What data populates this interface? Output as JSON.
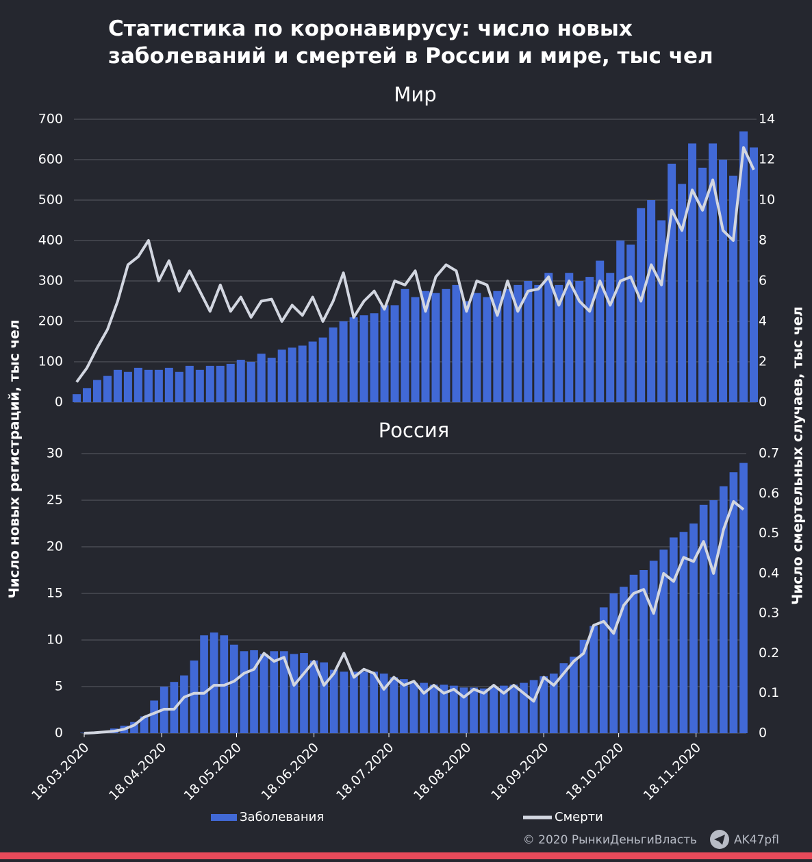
{
  "title": "Статистика по коронавирусу: число новых заболеваний и смертей в России и мире, тыс чел",
  "y_label": "Число новых регистраций, тыс чел",
  "y2_label": "Число смертельных случаев, тыс чел",
  "credit": "© 2020 РынкиДеньгиВласть",
  "channel": "AK47pfl",
  "chart_data": [
    {
      "type": "bar_line",
      "title": "Мир",
      "x": [
        "18.03.2020",
        "22.03.2020",
        "26.03.2020",
        "30.03.2020",
        "03.04.2020",
        "07.04.2020",
        "11.04.2020",
        "15.04.2020",
        "19.04.2020",
        "23.04.2020",
        "27.04.2020",
        "01.05.2020",
        "05.05.2020",
        "09.05.2020",
        "13.05.2020",
        "17.05.2020",
        "21.05.2020",
        "25.05.2020",
        "29.05.2020",
        "02.06.2020",
        "06.06.2020",
        "10.06.2020",
        "14.06.2020",
        "18.06.2020",
        "22.06.2020",
        "26.06.2020",
        "30.06.2020",
        "04.07.2020",
        "08.07.2020",
        "12.07.2020",
        "16.07.2020",
        "20.07.2020",
        "24.07.2020",
        "28.07.2020",
        "01.08.2020",
        "05.08.2020",
        "09.08.2020",
        "13.08.2020",
        "17.08.2020",
        "21.08.2020",
        "25.08.2020",
        "29.08.2020",
        "02.09.2020",
        "06.09.2020",
        "10.09.2020",
        "14.09.2020",
        "18.09.2020",
        "22.09.2020",
        "26.09.2020",
        "30.09.2020",
        "04.10.2020",
        "08.10.2020",
        "12.10.2020",
        "16.10.2020",
        "20.10.2020",
        "24.10.2020",
        "28.10.2020",
        "01.11.2020",
        "05.11.2020",
        "09.11.2020",
        "13.11.2020",
        "17.11.2020",
        "21.11.2020",
        "25.11.2020",
        "29.11.2020",
        "03.12.2020",
        "07.12.2020"
      ],
      "xlim": [
        "18.03.2020",
        "07.12.2020"
      ],
      "ylim": [
        0,
        700
      ],
      "yticks": [
        0,
        100,
        200,
        300,
        400,
        500,
        600,
        700
      ],
      "y2lim": [
        0,
        14
      ],
      "y2ticks": [
        0,
        2,
        4,
        6,
        8,
        10,
        12,
        14
      ],
      "grid": true,
      "series": [
        {
          "name": "Заболевания",
          "color": "#4169d6",
          "values": [
            20,
            35,
            55,
            65,
            80,
            75,
            85,
            80,
            80,
            85,
            75,
            90,
            80,
            90,
            90,
            95,
            105,
            100,
            120,
            110,
            130,
            135,
            140,
            150,
            160,
            185,
            200,
            210,
            215,
            220,
            240,
            240,
            280,
            260,
            275,
            270,
            280,
            290,
            250,
            270,
            260,
            275,
            280,
            290,
            300,
            290,
            320,
            290,
            320,
            300,
            310,
            350,
            320,
            400,
            390,
            480,
            500,
            450,
            590,
            540,
            640,
            580,
            640,
            600,
            560,
            670,
            630
          ]
        },
        {
          "name": "Смерти",
          "color": "#d2d6e0",
          "axis": "y2",
          "values": [
            1.0,
            1.7,
            2.7,
            3.6,
            5.0,
            6.8,
            7.2,
            8.0,
            6.0,
            7.0,
            5.5,
            6.5,
            5.5,
            4.5,
            5.8,
            4.5,
            5.2,
            4.2,
            5.0,
            5.1,
            4.0,
            4.8,
            4.3,
            5.2,
            4.0,
            5.0,
            6.4,
            4.2,
            5.0,
            5.5,
            4.6,
            6.0,
            5.8,
            6.5,
            4.5,
            6.2,
            6.8,
            6.5,
            4.5,
            6.0,
            5.8,
            4.3,
            6.0,
            4.5,
            5.5,
            5.6,
            6.2,
            4.8,
            6.0,
            5.0,
            4.5,
            6.0,
            4.8,
            6.0,
            6.2,
            5.0,
            6.8,
            5.8,
            9.5,
            8.5,
            10.5,
            9.5,
            11.0,
            8.5,
            8.0,
            12.6,
            11.5
          ]
        }
      ]
    },
    {
      "type": "bar_line",
      "title": "Россия",
      "x": [
        "18.03.2020",
        "22.03.2020",
        "26.03.2020",
        "30.03.2020",
        "03.04.2020",
        "07.04.2020",
        "11.04.2020",
        "15.04.2020",
        "19.04.2020",
        "23.04.2020",
        "27.04.2020",
        "01.05.2020",
        "05.05.2020",
        "09.05.2020",
        "13.05.2020",
        "17.05.2020",
        "21.05.2020",
        "25.05.2020",
        "29.05.2020",
        "02.06.2020",
        "06.06.2020",
        "10.06.2020",
        "14.06.2020",
        "18.06.2020",
        "22.06.2020",
        "26.06.2020",
        "30.06.2020",
        "04.07.2020",
        "08.07.2020",
        "12.07.2020",
        "16.07.2020",
        "20.07.2020",
        "24.07.2020",
        "28.07.2020",
        "01.08.2020",
        "05.08.2020",
        "09.08.2020",
        "13.08.2020",
        "17.08.2020",
        "21.08.2020",
        "25.08.2020",
        "29.08.2020",
        "02.09.2020",
        "06.09.2020",
        "10.09.2020",
        "14.09.2020",
        "18.09.2020",
        "22.09.2020",
        "26.09.2020",
        "30.09.2020",
        "04.10.2020",
        "08.10.2020",
        "12.10.2020",
        "16.10.2020",
        "20.10.2020",
        "24.10.2020",
        "28.10.2020",
        "01.11.2020",
        "05.11.2020",
        "09.11.2020",
        "13.11.2020",
        "17.11.2020",
        "21.11.2020",
        "25.11.2020",
        "29.11.2020",
        "03.12.2020",
        "07.12.2020"
      ],
      "xlim": [
        "18.03.2020",
        "07.12.2020"
      ],
      "xticks": [
        "18.03.2020",
        "18.04.2020",
        "18.05.2020",
        "18.06.2020",
        "18.07.2020",
        "18.08.2020",
        "18.09.2020",
        "18.10.2020",
        "18.11.2020"
      ],
      "ylim": [
        0,
        30
      ],
      "yticks": [
        0,
        5,
        10,
        15,
        20,
        25,
        30
      ],
      "y2lim": [
        0,
        0.7
      ],
      "y2ticks": [
        0,
        0.1,
        0.2,
        0.3,
        0.4,
        0.5,
        0.6,
        0.7
      ],
      "grid": true,
      "series": [
        {
          "name": "Заболевания",
          "color": "#4169d6",
          "values": [
            0.05,
            0.1,
            0.2,
            0.5,
            0.8,
            1.2,
            1.8,
            3.5,
            5.0,
            5.5,
            6.2,
            7.8,
            10.5,
            10.8,
            10.5,
            9.5,
            8.8,
            8.9,
            8.5,
            8.8,
            8.8,
            8.5,
            8.6,
            7.8,
            7.6,
            6.8,
            6.6,
            6.6,
            6.6,
            6.6,
            6.4,
            6.0,
            5.8,
            5.4,
            5.4,
            5.2,
            5.2,
            5.1,
            4.9,
            4.9,
            4.8,
            5.0,
            5.1,
            5.2,
            5.4,
            5.7,
            6.1,
            6.4,
            7.5,
            8.2,
            10.0,
            11.5,
            13.5,
            15.0,
            15.7,
            17.0,
            17.5,
            18.5,
            19.7,
            21.0,
            21.6,
            22.5,
            24.5,
            25.0,
            26.5,
            28.0,
            29.0
          ]
        },
        {
          "name": "Смерти",
          "color": "#d2d6e0",
          "axis": "y2",
          "values": [
            0,
            0.001,
            0.003,
            0.005,
            0.01,
            0.02,
            0.04,
            0.05,
            0.06,
            0.06,
            0.09,
            0.1,
            0.1,
            0.12,
            0.12,
            0.13,
            0.15,
            0.16,
            0.2,
            0.18,
            0.19,
            0.12,
            0.15,
            0.18,
            0.12,
            0.15,
            0.2,
            0.14,
            0.16,
            0.15,
            0.11,
            0.14,
            0.12,
            0.13,
            0.1,
            0.12,
            0.1,
            0.11,
            0.09,
            0.11,
            0.1,
            0.12,
            0.1,
            0.12,
            0.1,
            0.08,
            0.14,
            0.12,
            0.15,
            0.18,
            0.2,
            0.27,
            0.28,
            0.25,
            0.32,
            0.35,
            0.36,
            0.3,
            0.4,
            0.38,
            0.44,
            0.43,
            0.48,
            0.4,
            0.51,
            0.58,
            0.56
          ]
        }
      ]
    }
  ]
}
